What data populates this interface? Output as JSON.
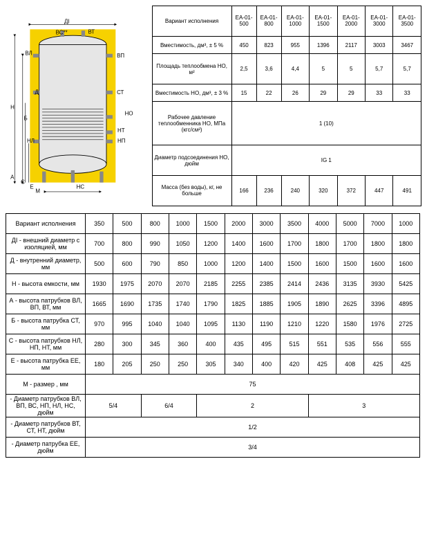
{
  "diagram": {
    "bg": "#f6d100",
    "tank_fill": "#e6e6e6",
    "tank_stroke": "#000",
    "coil": "#555",
    "labels": [
      "ДІ",
      "ВС**",
      "ВТ",
      "ВЛ",
      "ВП",
      "Д",
      "СТ",
      "НО",
      "НТ",
      "НЛ",
      "НП",
      "Б",
      "Н",
      "А",
      "С",
      "Е",
      "М",
      "НС"
    ]
  },
  "table1": {
    "headers": [
      "Вариант исполнения",
      "EA-01-500",
      "EA-01-800",
      "EA-01-1000",
      "EA-01-1500",
      "EA-01-2000",
      "EA-01-3000",
      "EA-01-3500"
    ],
    "rows": [
      {
        "label": "Вместимость, дм³, ± 5 %",
        "cells": [
          "450",
          "823",
          "955",
          "1396",
          "2117",
          "3003",
          "3467"
        ]
      },
      {
        "label": "Площадь теплообмена НО, м²",
        "cells": [
          "2,5",
          "3,6",
          "4,4",
          "5",
          "5",
          "5,7",
          "5,7"
        ]
      },
      {
        "label": "Вместимость НО, дм³, ± 3 %",
        "cells": [
          "15",
          "22",
          "26",
          "29",
          "29",
          "33",
          "33"
        ]
      },
      {
        "label": "Рабочее давление теплообменника НО, МПа (кгс/см²)",
        "span": "1 (10)"
      },
      {
        "label": "Диаметр подсоединения НО, дюйм",
        "span": "IG 1"
      },
      {
        "label": "Масса (без воды), кг, не больше",
        "cells": [
          "166",
          "236",
          "240",
          "320",
          "372",
          "447",
          "491"
        ]
      }
    ]
  },
  "table2": {
    "headers": [
      "Вариант исполнения",
      "350",
      "500",
      "800",
      "1000",
      "1500",
      "2000",
      "3000",
      "3500",
      "4000",
      "5000",
      "7000",
      "1000"
    ],
    "rows": [
      {
        "label": "ДІ - внешний диаметр с изоляцией, мм",
        "cells": [
          "700",
          "800",
          "990",
          "1050",
          "1200",
          "1400",
          "1600",
          "1700",
          "1800",
          "1700",
          "1800",
          "1800"
        ]
      },
      {
        "label": "Д - внутренний диаметр, мм",
        "cells": [
          "500",
          "600",
          "790",
          "850",
          "1000",
          "1200",
          "1400",
          "1500",
          "1600",
          "1500",
          "1600",
          "1600"
        ]
      },
      {
        "label": "Н - высота емкости, мм",
        "cells": [
          "1930",
          "1975",
          "2070",
          "2070",
          "2185",
          "2255",
          "2385",
          "2414",
          "2436",
          "3135",
          "3930",
          "5425"
        ]
      },
      {
        "label": "А - высота патрубков ВЛ, ВП, ВТ, мм",
        "cells": [
          "1665",
          "1690",
          "1735",
          "1740",
          "1790",
          "1825",
          "1885",
          "1905",
          "1890",
          "2625",
          "3396",
          "4895"
        ]
      },
      {
        "label": "Б - высота патрубка СТ, мм",
        "cells": [
          "970",
          "995",
          "1040",
          "1040",
          "1095",
          "1130",
          "1190",
          "1210",
          "1220",
          "1580",
          "1976",
          "2725"
        ]
      },
      {
        "label": "С - высота патрубков НЛ, НП, НТ, мм",
        "cells": [
          "280",
          "300",
          "345",
          "360",
          "400",
          "435",
          "495",
          "515",
          "551",
          "535",
          "556",
          "555"
        ]
      },
      {
        "label": "Е - высота патрубка ЕЕ, мм",
        "cells": [
          "180",
          "205",
          "250",
          "250",
          "305",
          "340",
          "400",
          "420",
          "425",
          "408",
          "425",
          "425"
        ]
      },
      {
        "label": "М - размер , мм",
        "span": "75"
      },
      {
        "label": "- Диаметр патрубков ВЛ, ВП, ВС, НП, НЛ, НС, дюйм",
        "groups": [
          {
            "span": 2,
            "v": "5/4"
          },
          {
            "span": 2,
            "v": "6/4"
          },
          {
            "span": 4,
            "v": "2"
          },
          {
            "span": 4,
            "v": "3"
          }
        ]
      },
      {
        "label": "- Диаметр патрубков ВТ, СТ, НТ, дюйм",
        "span": "1/2"
      },
      {
        "label": "- Диаметр патрубка ЕЕ, дюйм",
        "span": "3/4"
      }
    ]
  }
}
